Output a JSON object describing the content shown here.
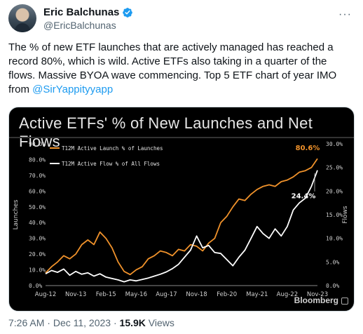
{
  "author": {
    "name": "Eric Balchunas",
    "handle": "@EricBalchunas"
  },
  "more_menu": "···",
  "tweet": {
    "text_before": "The % of new ETF launches that are actively managed has reached a record 80%, which is wild. Active ETFs also taking in a quarter of the flows. Massive BYOA wave commencing. Top 5 ETF chart of year IMO from ",
    "mention": "@SirYappityyapp"
  },
  "media": {
    "title": "Active ETFs' % of New Launches and Net Flows",
    "brand": "Bloomberg"
  },
  "chart_data": {
    "type": "line",
    "title": "Active ETFs' % of New Launches and Net Flows",
    "x_ticks": [
      "Aug-12",
      "Nov-13",
      "Feb-15",
      "May-16",
      "Aug-17",
      "Nov-18",
      "Feb-20",
      "May-21",
      "Aug-22",
      "Nov-23"
    ],
    "y_left": {
      "label": "Launches",
      "ticks": [
        "0.0%",
        "10.0%",
        "20.0%",
        "30.0%",
        "40.0%",
        "50.0%",
        "60.0%",
        "70.0%",
        "80.0%",
        "90.0%"
      ],
      "range": [
        0,
        90
      ]
    },
    "y_right": {
      "label": "Flows",
      "ticks": [
        "0.0%",
        "5.0%",
        "10.0%",
        "15.0%",
        "20.0%",
        "25.0%",
        "30.0%"
      ],
      "range": [
        0,
        30
      ]
    },
    "series": [
      {
        "name": "T12M Active Launch % of Launches",
        "axis": "left",
        "color": "#f0922b",
        "end_label": "80.6%",
        "points": [
          [
            "2012-08",
            8
          ],
          [
            "2012-11",
            12
          ],
          [
            "2013-02",
            15
          ],
          [
            "2013-05",
            19
          ],
          [
            "2013-08",
            17
          ],
          [
            "2013-11",
            20
          ],
          [
            "2014-02",
            26
          ],
          [
            "2014-05",
            29
          ],
          [
            "2014-08",
            26
          ],
          [
            "2014-11",
            34
          ],
          [
            "2015-02",
            30
          ],
          [
            "2015-05",
            24
          ],
          [
            "2015-08",
            15
          ],
          [
            "2015-11",
            9
          ],
          [
            "2016-02",
            7
          ],
          [
            "2016-05",
            10
          ],
          [
            "2016-08",
            12
          ],
          [
            "2016-11",
            17
          ],
          [
            "2017-02",
            19
          ],
          [
            "2017-05",
            22
          ],
          [
            "2017-08",
            21
          ],
          [
            "2017-11",
            19
          ],
          [
            "2018-02",
            23
          ],
          [
            "2018-05",
            22
          ],
          [
            "2018-08",
            26
          ],
          [
            "2018-11",
            25
          ],
          [
            "2019-02",
            22
          ],
          [
            "2019-05",
            27
          ],
          [
            "2019-08",
            30
          ],
          [
            "2019-11",
            40
          ],
          [
            "2020-02",
            44
          ],
          [
            "2020-05",
            50
          ],
          [
            "2020-08",
            55
          ],
          [
            "2020-11",
            54
          ],
          [
            "2021-02",
            58
          ],
          [
            "2021-05",
            61
          ],
          [
            "2021-08",
            63
          ],
          [
            "2021-11",
            64
          ],
          [
            "2022-02",
            63
          ],
          [
            "2022-05",
            66
          ],
          [
            "2022-08",
            67
          ],
          [
            "2022-11",
            69
          ],
          [
            "2023-02",
            72
          ],
          [
            "2023-05",
            73
          ],
          [
            "2023-08",
            75
          ],
          [
            "2023-11",
            80.6
          ]
        ]
      },
      {
        "name": "T12M Active Flow % of All Flows",
        "axis": "right",
        "color": "#ffffff",
        "end_label": "24.4%",
        "points": [
          [
            "2012-08",
            2.5
          ],
          [
            "2012-11",
            3.2
          ],
          [
            "2013-02",
            2.8
          ],
          [
            "2013-05",
            3.5
          ],
          [
            "2013-08",
            2.2
          ],
          [
            "2013-11",
            3.0
          ],
          [
            "2014-02",
            2.4
          ],
          [
            "2014-05",
            2.7
          ],
          [
            "2014-08",
            2.0
          ],
          [
            "2014-11",
            2.5
          ],
          [
            "2015-02",
            1.8
          ],
          [
            "2015-05",
            1.5
          ],
          [
            "2015-08",
            1.2
          ],
          [
            "2015-11",
            0.8
          ],
          [
            "2016-02",
            1.2
          ],
          [
            "2016-05",
            1.0
          ],
          [
            "2016-08",
            1.3
          ],
          [
            "2016-11",
            1.6
          ],
          [
            "2017-02",
            2.0
          ],
          [
            "2017-05",
            2.4
          ],
          [
            "2017-08",
            2.9
          ],
          [
            "2017-11",
            3.6
          ],
          [
            "2018-02",
            4.5
          ],
          [
            "2018-05",
            6.0
          ],
          [
            "2018-08",
            7.5
          ],
          [
            "2018-11",
            10.5
          ],
          [
            "2019-02",
            8.0
          ],
          [
            "2019-05",
            8.5
          ],
          [
            "2019-08",
            7.0
          ],
          [
            "2019-11",
            6.8
          ],
          [
            "2020-02",
            5.5
          ],
          [
            "2020-05",
            4.2
          ],
          [
            "2020-08",
            6.0
          ],
          [
            "2020-11",
            7.5
          ],
          [
            "2021-02",
            10.0
          ],
          [
            "2021-05",
            12.5
          ],
          [
            "2021-08",
            11.0
          ],
          [
            "2021-11",
            10.0
          ],
          [
            "2022-02",
            12.0
          ],
          [
            "2022-05",
            10.5
          ],
          [
            "2022-08",
            12.5
          ],
          [
            "2022-11",
            16.0
          ],
          [
            "2023-02",
            17.5
          ],
          [
            "2023-05",
            18.5
          ],
          [
            "2023-08",
            21.0
          ],
          [
            "2023-11",
            24.4
          ]
        ]
      }
    ],
    "legend_placement": "top-left",
    "grid": false
  },
  "footer": {
    "time": "7:26 AM",
    "separator": "·",
    "date": "Dec 11, 2023",
    "views_count": "15.9K",
    "views_label": "Views"
  },
  "colors": {
    "accent_link": "#1d9bf0",
    "verified": "#1d9bf0",
    "launch_line": "#f0922b",
    "flow_line": "#ffffff"
  },
  "icons": {
    "verified": "verified-badge-icon",
    "more": "more-dots-icon",
    "bloomberg": "bloomberg-icon"
  }
}
